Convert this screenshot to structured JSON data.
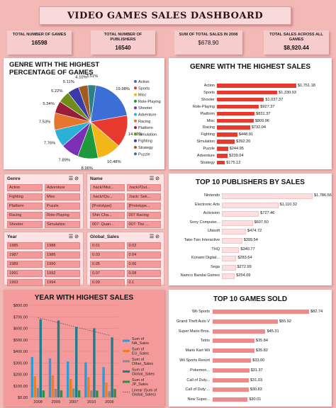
{
  "title": "VIDEO GAMES SALES DASHBOARD",
  "kpis": [
    {
      "label": "TOTAL NUMBER OF GAMES",
      "value": "16598"
    },
    {
      "label": "TOTAL NUMBER OF PUBLISHERS",
      "value": "16540"
    },
    {
      "label": "SUM OF TOTAL SALES IN 2008",
      "value": "$678.90"
    },
    {
      "label": "TOTAL SALES ACROSS ALL GAMES",
      "value": "$8,920.44"
    }
  ],
  "genre_pie": {
    "title": "GENRE WITH THE HIGHEST PERCENTAGE OF GAMES",
    "chart_data": {
      "type": "pie",
      "labels": [
        "Action",
        "Sports",
        "Misc",
        "Role-Playing",
        "Shooter",
        "Adventure",
        "Racing",
        "Platform",
        "Simulation",
        "Fighting",
        "Strategy",
        "Puzzle"
      ],
      "values": [
        19.98,
        14.13,
        10.48,
        8.96,
        7.89,
        7.76,
        7.53,
        5.34,
        5.22,
        5.11,
        4.1,
        3.51
      ],
      "value_labels": [
        "19.98%",
        "14.13%",
        "10.48%",
        "8.96%",
        "7.89%",
        "7.76%",
        "7.53%",
        "5.34%",
        "5.22%",
        "5.11%",
        "4.10%",
        "3.51%"
      ],
      "colors": [
        "#3b6fd6",
        "#e8392f",
        "#f2b619",
        "#1e9a3c",
        "#7a2fb5",
        "#2bb0d8",
        "#e5762b",
        "#9b1c3a",
        "#6f8d18",
        "#3a3aa8",
        "#a35a1f",
        "#2f7f86"
      ],
      "legend_position": "right"
    }
  },
  "genre_sales": {
    "title": "GENRE WITH THE HIGHEST SALES",
    "chart_data": {
      "type": "bar",
      "orientation": "horizontal",
      "categories": [
        "Action",
        "Sports",
        "Shooter",
        "Role-Playing",
        "Platform",
        "Misc",
        "Racing",
        "Fighting",
        "Simulation",
        "Puzzle",
        "Adventure",
        "Strategy"
      ],
      "values": [
        1751.18,
        1330.93,
        1037.37,
        927.37,
        831.37,
        809.96,
        732.04,
        448.91,
        392.2,
        244.95,
        239.04,
        175.12
      ],
      "value_labels": [
        "$1,751.18",
        "$1,330.93",
        "$1,037.37",
        "$927.37",
        "$831.37",
        "$809.96",
        "$732.04",
        "$448.91",
        "$392.20",
        "$244.95",
        "$239.04",
        "$175.12"
      ],
      "color": "#e8392f"
    }
  },
  "slicers": {
    "genre": {
      "label": "Genre",
      "items": [
        "Action",
        "Adventure",
        "Fighting",
        "Misc",
        "Platform",
        "Puzzle",
        "Racing",
        "Role-Playing",
        "Shooter",
        "Simulation"
      ]
    },
    "name": {
      "label": "Name",
      "items": [
        ".hack//Mut...",
        ".hack//Out...",
        ".hack//Qu...",
        ".hack: Sek...",
        "[Prototype]",
        "[Prototype...",
        "Shin Cha...",
        "007 Racing",
        "007: Quan...",
        "007: The ..."
      ]
    },
    "year": {
      "label": "Year",
      "items": [
        "1985",
        "1988",
        "1987",
        "1986",
        "1989",
        "1990",
        "1991",
        "1992",
        "1993",
        "1994"
      ]
    },
    "global_sales": {
      "label": "Global_Sales",
      "items": [
        "0.01",
        "0.02",
        "0.03",
        "0.04",
        "0.05",
        "0.06",
        "0.07",
        "0.08",
        "0.09",
        "0.1"
      ]
    }
  },
  "publishers": {
    "title": "TOP 10 PUBLISHERS BY SALES",
    "chart_data": {
      "type": "bar",
      "orientation": "horizontal",
      "categories": [
        "Nintendo",
        "Electronic Arts",
        "Activision",
        "Sony Computer...",
        "Ubisoft",
        "Take-Two Interactive",
        "THQ",
        "Konami Digital...",
        "Sega",
        "Namco Bandai Games"
      ],
      "values": [
        1786.56,
        1110.32,
        727.46,
        607.5,
        474.72,
        399.54,
        340.77,
        283.64,
        272.99,
        254.09
      ],
      "value_labels": [
        "$1,786.56",
        "$1,110.32",
        "$727.46",
        "$607.50",
        "$474.72",
        "$399.54",
        "$340.77",
        "$283.64",
        "$272.99",
        "$254.09"
      ],
      "color": "#fbe0df"
    }
  },
  "year_sales": {
    "title": "YEAR WITH HIGHEST SALES",
    "chart_data": {
      "type": "bar",
      "categories": [
        "2008",
        "2009",
        "2007",
        "2010",
        "2006"
      ],
      "ylim": [
        0,
        800
      ],
      "yticks": [
        "$0.00",
        "$100.00",
        "$200.00",
        "$300.00",
        "$400.00",
        "$500.00",
        "$600.00",
        "$700.00",
        "$800.00"
      ],
      "series": [
        {
          "name": "Sum of NA_Sales",
          "values": [
            351,
            338,
            312,
            304,
            263
          ],
          "color": "#2f9ad6"
        },
        {
          "name": "Sum of EU_Sales",
          "values": [
            184,
            191,
            160,
            176,
            129
          ],
          "color": "#ef7e22"
        },
        {
          "name": "Sum of Other_Sales",
          "values": [
            82,
            74,
            77,
            60,
            54
          ],
          "color": "#8a8a8a"
        },
        {
          "name": "Sum of Global_Sales",
          "values": [
            679,
            668,
            612,
            600,
            521
          ],
          "color": "#1e7e8c"
        },
        {
          "name": "Sum of JP_Sales",
          "values": [
            60,
            61,
            60,
            59,
            73
          ],
          "color": "#2f8f3f"
        }
      ],
      "trendline": {
        "name": "Linear (Sum of Global_Sales)"
      }
    }
  },
  "top_games": {
    "title": "TOP 10 GAMES SOLD",
    "chart_data": {
      "type": "bar",
      "orientation": "horizontal",
      "categories": [
        "Wii Sports",
        "Grand Theft Auto V",
        "Super Mario Bros.",
        "Tetris",
        "Mario Kart Wii",
        "Wii Sports Resort",
        "Pokemon...",
        "Call of Duty...",
        "Call of Duty:...",
        "New Super..."
      ],
      "values": [
        82.74,
        55.92,
        45.31,
        35.84,
        35.82,
        33.0,
        31.37,
        31.03,
        30.83,
        30.01
      ],
      "value_labels": [
        "$82.74",
        "$55.92",
        "$45.31",
        "$35.84",
        "$35.82",
        "$33.00",
        "$31.37",
        "$31.03",
        "$30.83",
        "$30.01"
      ],
      "color": "#f08a8a"
    }
  }
}
